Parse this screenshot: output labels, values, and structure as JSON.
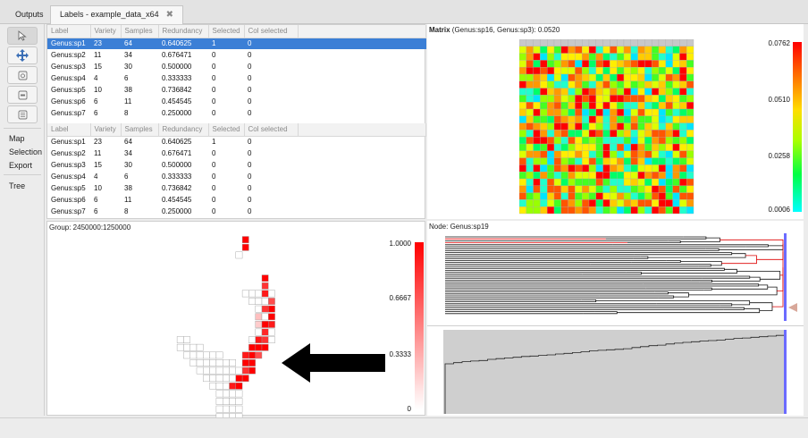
{
  "tabs": [
    {
      "label": "Outputs",
      "active": false
    },
    {
      "label": "Labels - example_data_x64",
      "active": true,
      "close": "✖"
    }
  ],
  "toolbar": {
    "tools": [
      {
        "icon": "pointer-icon",
        "selected": true
      },
      {
        "icon": "move-icon",
        "selected": false
      },
      {
        "icon": "camera-icon",
        "selected": false
      },
      {
        "icon": "comment-icon",
        "selected": false
      },
      {
        "icon": "grid-icon",
        "selected": false
      }
    ],
    "menu": [
      "Map",
      "Selection",
      "Export"
    ],
    "tree_label": "Tree"
  },
  "table": {
    "headers": [
      "Label",
      "Variety",
      "Samples",
      "Redundancy",
      "Selected",
      "Col selected"
    ],
    "rows": [
      [
        "Genus:sp1",
        "23",
        "64",
        "0.640625",
        "1",
        "0"
      ],
      [
        "Genus:sp2",
        "11",
        "34",
        "0.676471",
        "0",
        "0"
      ],
      [
        "Genus:sp3",
        "15",
        "30",
        "0.500000",
        "0",
        "0"
      ],
      [
        "Genus:sp4",
        "4",
        "6",
        "0.333333",
        "0",
        "0"
      ],
      [
        "Genus:sp5",
        "10",
        "38",
        "0.736842",
        "0",
        "0"
      ],
      [
        "Genus:sp6",
        "6",
        "11",
        "0.454545",
        "0",
        "0"
      ],
      [
        "Genus:sp7",
        "6",
        "8",
        "0.250000",
        "0",
        "0"
      ]
    ],
    "highlighted_row": 0
  },
  "matrix": {
    "title_bold": "Matrix",
    "title_rest": " (Genus:sp16, Genus:sp3): 0.0520",
    "scale_labels": [
      "0.0762",
      "0.0510",
      "0.0258",
      "0.0006"
    ]
  },
  "group": {
    "title": "Group: 2450000:1250000",
    "scale_labels": [
      "1.0000",
      "0.6667",
      "0.3333",
      "0"
    ]
  },
  "node": {
    "title": "Node: Genus:sp19"
  },
  "colors": {
    "accent": "#3b7fd6",
    "red": "#ee0000",
    "marker": "#6b6bff"
  }
}
